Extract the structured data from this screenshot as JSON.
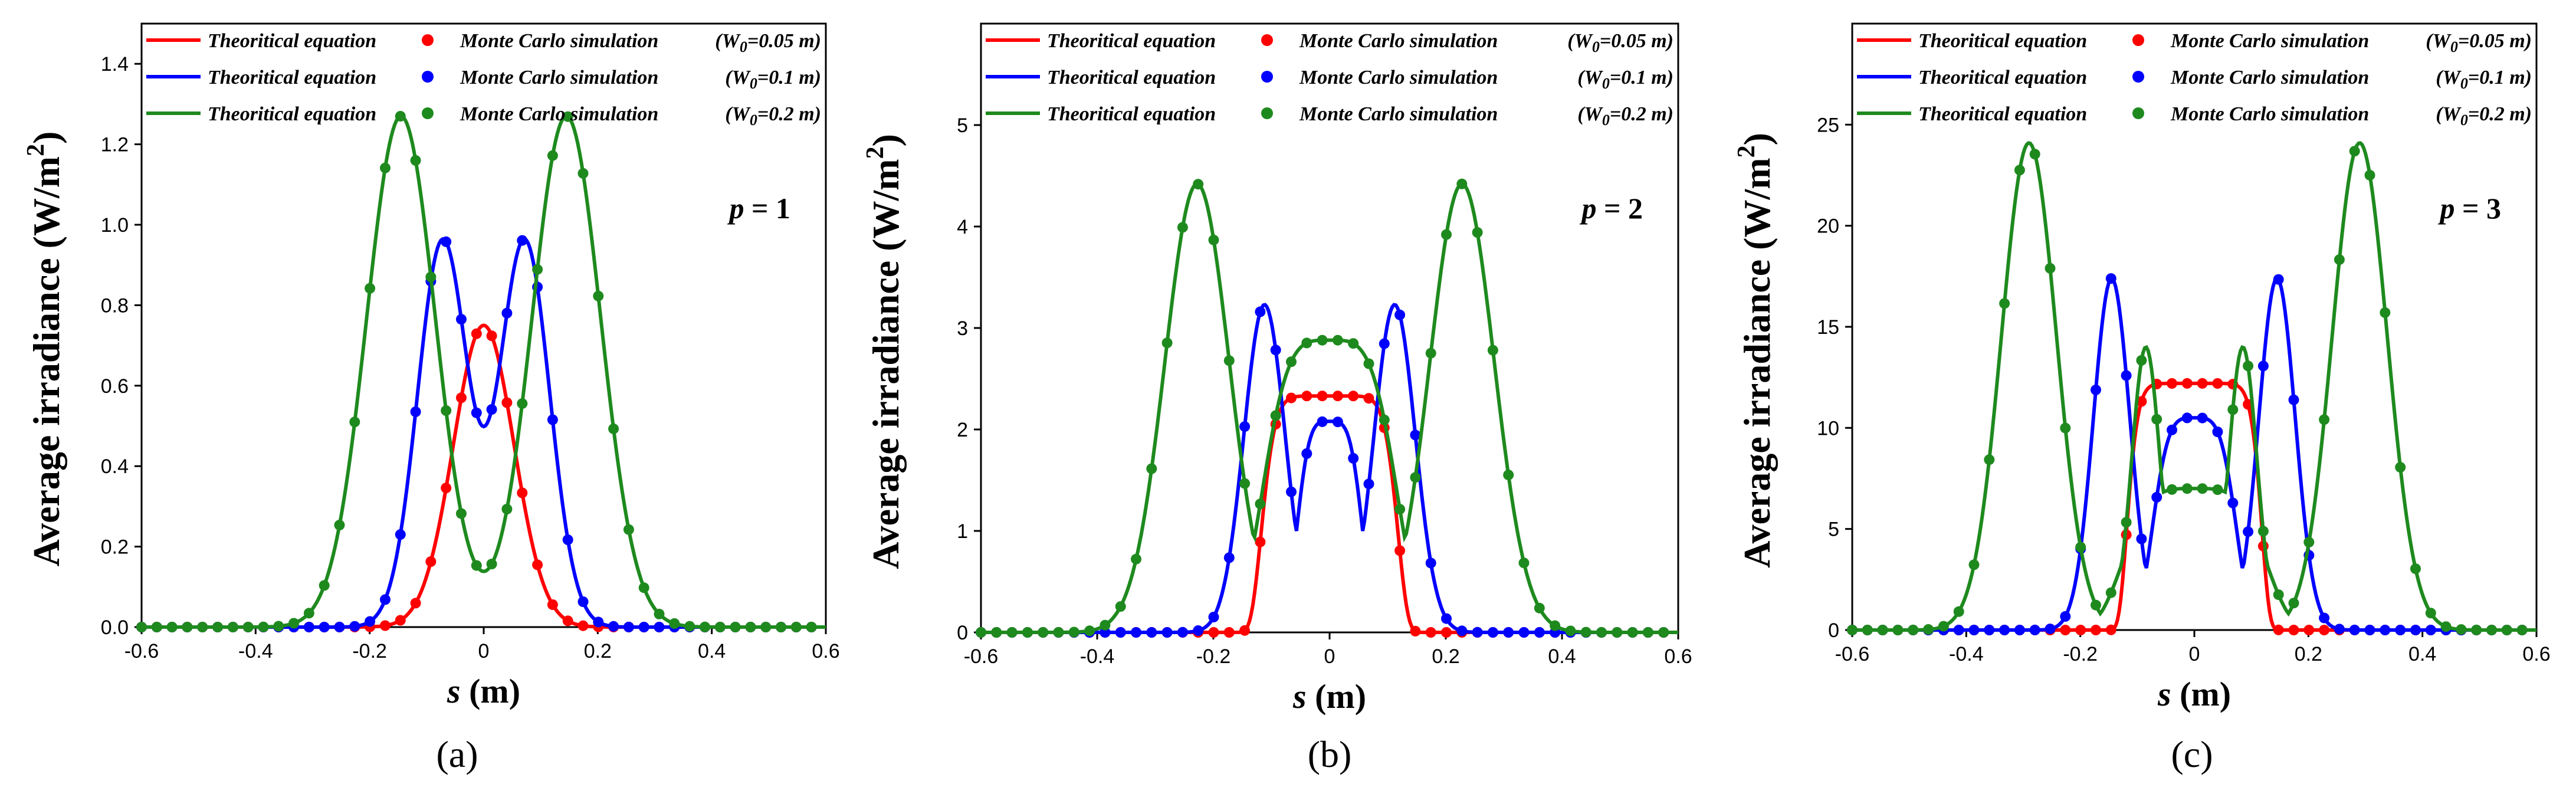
{
  "figure": {
    "ylabel_text": "Average irradiance (W/m",
    "ylabel_sup": "2",
    "ylabel_close": ")",
    "xlabel_var": "s",
    "xlabel_unit": " (m)"
  },
  "colors": {
    "w005": "#ff0000",
    "w01": "#0000ff",
    "w02": "#1e8a1e"
  },
  "chart_data": [
    {
      "type": "line",
      "panel_label": "(a)",
      "p_var": "p",
      "p_value": " = 1",
      "xlim": [
        -0.6,
        0.6
      ],
      "ylim": [
        0,
        1.5
      ],
      "x_ticks": [
        "-0.6",
        "-0.4",
        "-0.2",
        "0",
        "0.2",
        "0.4",
        "0.6"
      ],
      "y_ticks": [
        "0.0",
        "0.2",
        "0.4",
        "0.6",
        "0.8",
        "1.0",
        "1.2",
        "1.4"
      ],
      "legend": [
        {
          "line_label": "Theoritical equation",
          "marker_label": "Monte Carlo simulation",
          "w_text": "0.05 m"
        },
        {
          "line_label": "Theoritical equation",
          "marker_label": "Monte Carlo simulation",
          "w_text": "0.1 m"
        },
        {
          "line_label": "Theoritical equation",
          "marker_label": "Monte Carlo simulation",
          "w_text": "0.2 m"
        }
      ],
      "series": [
        {
          "name": "W0=0.05 m",
          "color_key": "w005",
          "peak": 0.75,
          "sigma": 0.075,
          "center": 0.0,
          "flat_exp": 1,
          "dip": 0
        },
        {
          "name": "W0=0.1 m",
          "color_key": "w01",
          "peak": 0.96,
          "sigma": 0.062,
          "center": 0.072,
          "flat_exp": 1,
          "dip": 0
        },
        {
          "name": "W0=0.2 m",
          "color_key": "w02",
          "peak": 1.27,
          "sigma": 0.085,
          "center": 0.145,
          "flat_exp": 1,
          "dip": 0
        }
      ]
    },
    {
      "type": "line",
      "panel_label": "(b)",
      "p_var": "p",
      "p_value": " = 2",
      "xlim": [
        -0.6,
        0.6
      ],
      "ylim": [
        0,
        6
      ],
      "x_ticks": [
        "-0.6",
        "-0.4",
        "-0.2",
        "0",
        "0.2",
        "0.4",
        "0.6"
      ],
      "y_ticks": [
        "0",
        "1",
        "2",
        "3",
        "4",
        "5"
      ],
      "legend": [
        {
          "line_label": "Theoritical equation",
          "marker_label": "Monte Carlo simulation",
          "w_text": "0.05 m"
        },
        {
          "line_label": "Theoritical equation",
          "marker_label": "Monte Carlo simulation",
          "w_text": "0.1 m"
        },
        {
          "line_label": "Theoritical equation",
          "marker_label": "Monte Carlo simulation",
          "w_text": "0.2 m"
        }
      ],
      "series": [
        {
          "name": "W0=0.05 m",
          "color_key": "w005",
          "peak": 2.33,
          "sigma": 0.12,
          "center": 0.0,
          "flat_exp": 4,
          "dip": 0
        },
        {
          "name": "W0=0.1 m",
          "color_key": "w01",
          "peak": 3.23,
          "sigma": 0.05,
          "center": 0.112,
          "flat_exp": 1,
          "dip": 2.08
        },
        {
          "name": "W0=0.2 m",
          "color_key": "w02",
          "peak": 4.42,
          "sigma": 0.078,
          "center": 0.228,
          "flat_exp": 1,
          "dip": 2.88
        }
      ]
    },
    {
      "type": "line",
      "panel_label": "(c)",
      "p_var": "p",
      "p_value": " = 3",
      "xlim": [
        -0.6,
        0.6
      ],
      "ylim": [
        0,
        30
      ],
      "x_ticks": [
        "-0.6",
        "-0.4",
        "-0.2",
        "0",
        "0.2",
        "0.4",
        "0.6"
      ],
      "y_ticks": [
        "0",
        "5",
        "10",
        "15",
        "20",
        "25"
      ],
      "legend": [
        {
          "line_label": "Theoritical equation",
          "marker_label": "Monte Carlo simulation",
          "w_text": "0.05 m"
        },
        {
          "line_label": "Theoritical equation",
          "marker_label": "Monte Carlo simulation",
          "w_text": "0.1 m"
        },
        {
          "line_label": "Theoritical equation",
          "marker_label": "Monte Carlo simulation",
          "w_text": "0.2 m"
        }
      ],
      "series": [
        {
          "name": "W0=0.05 m",
          "color_key": "w005",
          "peak": 12.2,
          "sigma": 0.12,
          "center": 0.0,
          "flat_exp": 5,
          "dip": 0
        },
        {
          "name": "W0=0.1 m",
          "color_key": "w01",
          "peak": 17.4,
          "sigma": 0.045,
          "center": 0.145,
          "flat_exp": 1,
          "dip": 10.5
        },
        {
          "name": "W0=0.2 m",
          "color_key": "w02",
          "peak": 24.1,
          "sigma": 0.068,
          "center": 0.29,
          "flat_exp": 1,
          "dip": 7.0,
          "inner_peak": 14.0,
          "inner_center": 0.085,
          "inner_sigma": 0.035
        }
      ]
    }
  ]
}
